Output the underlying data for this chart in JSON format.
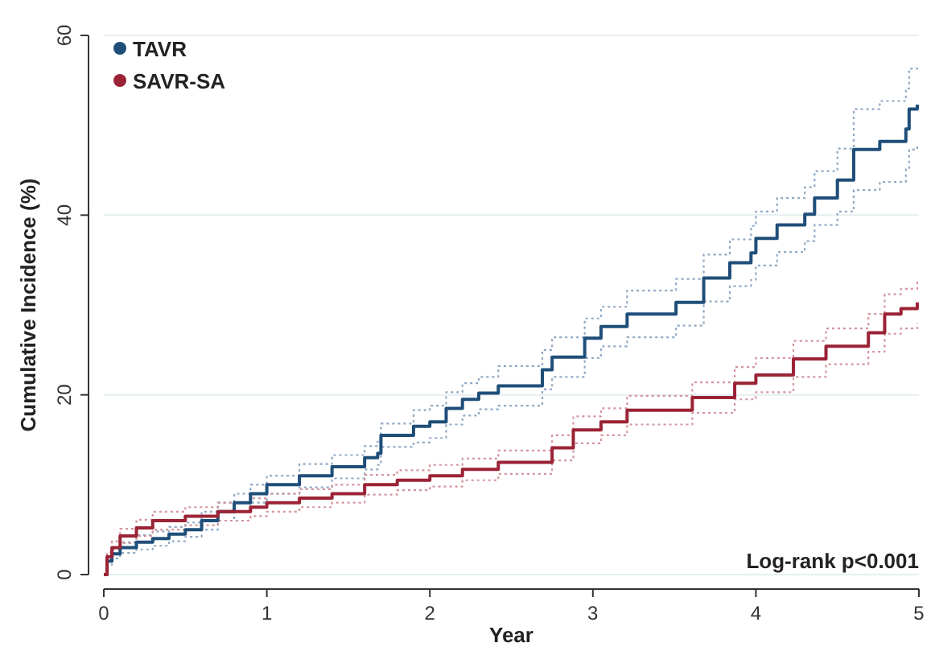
{
  "chart_data": {
    "type": "step",
    "xlabel": "Year",
    "ylabel": "Cumulative Incidence (%)",
    "xlim": [
      0,
      5
    ],
    "xticks": [
      0,
      1,
      2,
      3,
      4,
      5
    ],
    "ylim": [
      0,
      60
    ],
    "yticks": [
      0,
      20,
      40,
      60
    ],
    "grid": "y",
    "legend": "top left",
    "annotations": [
      "Log-rank p<0.001"
    ],
    "series": [
      {
        "name": "TAVR",
        "color": "#1f4e79",
        "line_style": "solid",
        "x": [
          0,
          0.02,
          0.05,
          0.1,
          0.2,
          0.3,
          0.4,
          0.5,
          0.6,
          0.7,
          0.8,
          0.9,
          1.0,
          1.2,
          1.4,
          1.6,
          1.68,
          1.7,
          1.9,
          2.0,
          2.1,
          2.2,
          2.3,
          2.42,
          2.69,
          2.75,
          2.95,
          3.05,
          3.21,
          3.51,
          3.68,
          3.84,
          3.97,
          4.0,
          4.13,
          4.3,
          4.36,
          4.5,
          4.6,
          4.76,
          4.92,
          4.94,
          4.99
        ],
        "values": [
          0,
          1.5,
          2.3,
          3.0,
          3.6,
          4.0,
          4.5,
          5.0,
          6.0,
          7.0,
          8.0,
          9.0,
          10.0,
          11.0,
          12.0,
          13.0,
          13.5,
          15.5,
          16.5,
          17.0,
          18.5,
          19.5,
          20.2,
          21.0,
          22.8,
          24.2,
          26.3,
          27.6,
          29.0,
          30.3,
          33.0,
          34.7,
          35.8,
          37.4,
          38.9,
          40.1,
          41.9,
          43.9,
          47.3,
          48.2,
          49.6,
          51.8,
          52.3
        ]
      },
      {
        "color": "#8fa8c4",
        "line_style": "dotted",
        "x": [
          0,
          0.02,
          0.05,
          0.1,
          0.2,
          0.3,
          0.4,
          0.5,
          0.6,
          0.7,
          0.8,
          0.9,
          1.0,
          1.2,
          1.4,
          1.6,
          1.68,
          1.7,
          1.9,
          2.0,
          2.1,
          2.2,
          2.3,
          2.42,
          2.69,
          2.75,
          2.95,
          3.05,
          3.21,
          3.51,
          3.68,
          3.84,
          3.97,
          4.0,
          4.13,
          4.3,
          4.36,
          4.5,
          4.6,
          4.76,
          4.92,
          4.94,
          4.99
        ],
        "values": [
          0,
          1.1,
          1.8,
          2.4,
          2.8,
          3.2,
          3.7,
          4.2,
          5.0,
          6.0,
          7.0,
          8.0,
          9.0,
          9.7,
          10.7,
          11.7,
          12.2,
          14.2,
          14.7,
          15.2,
          16.7,
          17.7,
          18.4,
          18.8,
          20.6,
          22.0,
          24.1,
          25.4,
          26.4,
          27.7,
          30.4,
          32.1,
          32.8,
          34.4,
          35.9,
          37.1,
          38.9,
          40.4,
          42.8,
          43.7,
          45.1,
          47.3,
          47.8
        ]
      },
      {
        "color": "#8fa8c4",
        "line_style": "dotted",
        "x": [
          0,
          0.02,
          0.05,
          0.1,
          0.2,
          0.3,
          0.4,
          0.5,
          0.6,
          0.7,
          0.8,
          0.9,
          1.0,
          1.2,
          1.4,
          1.6,
          1.68,
          1.7,
          1.9,
          2.0,
          2.1,
          2.2,
          2.3,
          2.42,
          2.69,
          2.75,
          2.95,
          3.05,
          3.21,
          3.51,
          3.68,
          3.84,
          3.97,
          4.0,
          4.13,
          4.3,
          4.36,
          4.5,
          4.6,
          4.76,
          4.92,
          4.94,
          4.99
        ],
        "values": [
          0,
          1.9,
          2.8,
          3.6,
          4.4,
          4.8,
          5.3,
          5.8,
          7.0,
          8.0,
          9.0,
          10.0,
          11.0,
          12.3,
          13.3,
          14.3,
          14.8,
          16.8,
          18.3,
          18.8,
          20.3,
          21.3,
          22.0,
          23.2,
          25.0,
          26.4,
          28.5,
          29.8,
          31.6,
          32.9,
          35.6,
          37.3,
          38.8,
          40.4,
          41.9,
          43.1,
          44.9,
          47.4,
          51.8,
          52.7,
          54.1,
          56.3,
          56.8
        ]
      },
      {
        "name": "SAVR-SA",
        "color": "#9b2335",
        "line_style": "solid",
        "x": [
          0,
          0.02,
          0.05,
          0.1,
          0.2,
          0.3,
          0.5,
          0.7,
          0.9,
          1.0,
          1.2,
          1.4,
          1.6,
          1.8,
          2.0,
          2.2,
          2.42,
          2.75,
          2.88,
          3.05,
          3.21,
          3.61,
          3.87,
          4.0,
          4.23,
          4.43,
          4.69,
          4.79,
          4.89,
          4.99
        ],
        "values": [
          0,
          2.0,
          3.0,
          4.3,
          5.2,
          6.0,
          6.5,
          7.0,
          7.5,
          8.0,
          8.5,
          9.0,
          10.0,
          10.5,
          11.0,
          11.7,
          12.5,
          14.1,
          16.1,
          17.0,
          18.3,
          19.7,
          21.3,
          22.2,
          24.0,
          25.4,
          26.9,
          29.0,
          29.6,
          30.3
        ]
      },
      {
        "color": "#d4949d",
        "line_style": "dotted",
        "x": [
          0,
          0.02,
          0.05,
          0.1,
          0.2,
          0.3,
          0.5,
          0.7,
          0.9,
          1.0,
          1.2,
          1.4,
          1.6,
          1.8,
          2.0,
          2.2,
          2.42,
          2.75,
          2.88,
          3.05,
          3.21,
          3.61,
          3.87,
          4.0,
          4.23,
          4.43,
          4.69,
          4.79,
          4.89,
          4.99
        ],
        "values": [
          0,
          1.5,
          2.3,
          3.5,
          4.3,
          5.0,
          5.5,
          6.0,
          6.5,
          7.0,
          7.5,
          8.0,
          8.9,
          9.4,
          9.8,
          10.5,
          11.2,
          12.7,
          14.6,
          15.5,
          16.7,
          18.0,
          19.5,
          20.3,
          22.0,
          23.4,
          24.8,
          26.8,
          27.4,
          28.0
        ]
      },
      {
        "color": "#d4949d",
        "line_style": "dotted",
        "x": [
          0,
          0.02,
          0.05,
          0.1,
          0.2,
          0.3,
          0.5,
          0.7,
          0.9,
          1.0,
          1.2,
          1.4,
          1.6,
          1.8,
          2.0,
          2.2,
          2.42,
          2.75,
          2.88,
          3.05,
          3.21,
          3.61,
          3.87,
          4.0,
          4.23,
          4.43,
          4.69,
          4.79,
          4.89,
          4.99
        ],
        "values": [
          0,
          2.5,
          3.7,
          5.1,
          6.1,
          7.0,
          7.5,
          8.0,
          8.5,
          9.0,
          9.5,
          10.0,
          11.1,
          11.6,
          12.2,
          12.9,
          13.8,
          15.5,
          17.6,
          18.5,
          19.9,
          21.4,
          23.1,
          24.1,
          26.0,
          27.4,
          29.0,
          31.2,
          31.8,
          32.6
        ]
      }
    ]
  }
}
